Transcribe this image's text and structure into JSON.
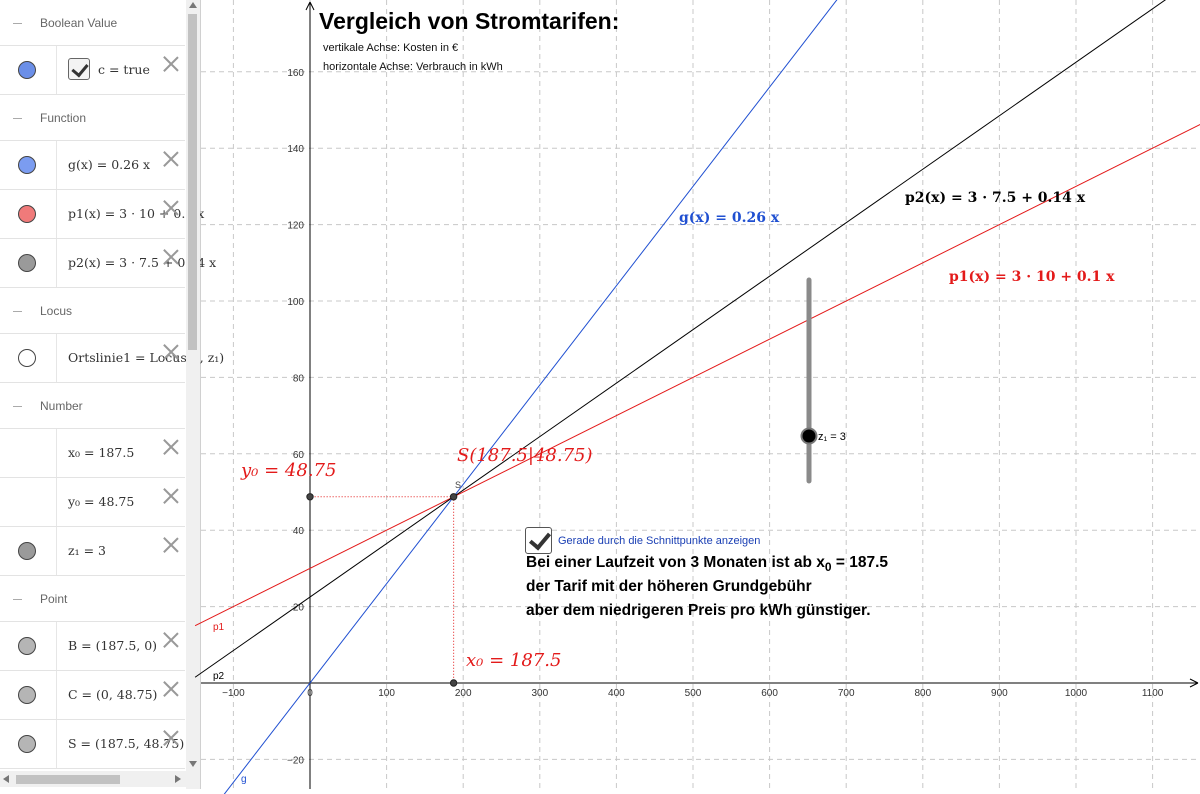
{
  "algebra": {
    "categories": [
      {
        "title": "Boolean Value",
        "items": [
          {
            "color": "#6b8fe8",
            "checkbox": true,
            "expr": "c = true"
          }
        ]
      },
      {
        "title": "Function",
        "items": [
          {
            "color": "#7b9cf0",
            "expr": "g(x) = 0.26 x"
          },
          {
            "color": "#f07a7a",
            "expr": "p1(x) = 3 · 10 + 0.1 x"
          },
          {
            "color": "#9a9a9a",
            "expr": "p2(x) = 3 · 7.5 + 0.14 x"
          }
        ]
      },
      {
        "title": "Locus",
        "items": [
          {
            "color": "#ffffff",
            "expr": "Ortslinie1 = Locus(S, z₁)"
          }
        ]
      },
      {
        "title": "Number",
        "items": [
          {
            "color": null,
            "expr": "x₀ = 187.5"
          },
          {
            "color": null,
            "expr": "y₀ = 48.75"
          },
          {
            "color": "#9a9a9a",
            "expr": "z₁ = 3"
          }
        ]
      },
      {
        "title": "Point",
        "items": [
          {
            "color": "#b5b5b5",
            "expr": "B = (187.5, 0)"
          },
          {
            "color": "#b5b5b5",
            "expr": "C = (0, 48.75)"
          },
          {
            "color": "#b5b5b5",
            "expr": "S = (187.5, 48.75)"
          }
        ]
      }
    ]
  },
  "graphics": {
    "title": "Vergleich von Stromtarifen:",
    "axis_info": [
      "vertikale Achse: Kosten in €",
      "horizontale Achse: Verbrauch in kWh"
    ],
    "labels": {
      "g": "g(x)  =  0.26 x",
      "p1": "p1(x)  =  3 · 10 + 0.1 x",
      "p2": "p2(x)  =  3 · 7.5 + 0.14 x",
      "S": "S(187.5|48.75)",
      "x0": "x₀ = 187.5",
      "y0": "y₀ = 48.75",
      "p1_short": "p1",
      "p2_short": "p2",
      "g_short": "g",
      "S_short": "S"
    },
    "slider": {
      "name": "z₁ = 3",
      "value": 3
    },
    "checkbox_label": "Gerade durch die Schnittpunkte anzeigen",
    "checkbox_checked": true,
    "info_lines": [
      "Bei einer Laufzeit von 3 Monaten ist ab  x",
      "0",
      " = 187.5",
      "der Tarif mit der höheren Grundgebühr",
      "aber dem niedrigeren Preis pro kWh günstiger."
    ],
    "colors": {
      "g": "#1f4fd1",
      "p1": "#e31a1a",
      "p2": "#000000",
      "grid": "#c8c8c8"
    }
  },
  "chart_data": {
    "type": "line",
    "xlabel": "",
    "ylabel": "",
    "xlim": [
      -130,
      1160
    ],
    "ylim": [
      -26,
      177
    ],
    "x_ticks": [
      -100,
      0,
      100,
      200,
      300,
      400,
      500,
      600,
      700,
      800,
      900,
      1000,
      1100
    ],
    "y_ticks": [
      -20,
      20,
      40,
      60,
      80,
      100,
      120,
      140,
      160
    ],
    "series": [
      {
        "name": "g",
        "label": "g(x) = 0.26 x",
        "slope": 0.26,
        "intercept": 0
      },
      {
        "name": "p1",
        "label": "p1(x) = 3 · 10 + 0.1 x",
        "slope": 0.1,
        "intercept": 30
      },
      {
        "name": "p2",
        "label": "p2(x) = 3 · 7.5 + 0.14 x",
        "slope": 0.14,
        "intercept": 22.5
      }
    ],
    "points": [
      {
        "name": "S",
        "x": 187.5,
        "y": 48.75
      },
      {
        "name": "B",
        "x": 187.5,
        "y": 0
      },
      {
        "name": "C",
        "x": 0,
        "y": 48.75
      }
    ]
  }
}
